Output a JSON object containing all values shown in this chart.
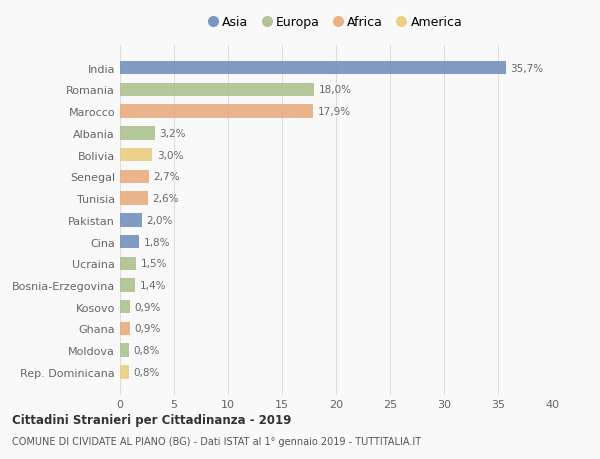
{
  "countries": [
    "India",
    "Romania",
    "Marocco",
    "Albania",
    "Bolivia",
    "Senegal",
    "Tunisia",
    "Pakistan",
    "Cina",
    "Ucraina",
    "Bosnia-Erzegovina",
    "Kosovo",
    "Ghana",
    "Moldova",
    "Rep. Dominicana"
  ],
  "values": [
    35.7,
    18.0,
    17.9,
    3.2,
    3.0,
    2.7,
    2.6,
    2.0,
    1.8,
    1.5,
    1.4,
    0.9,
    0.9,
    0.8,
    0.8
  ],
  "labels": [
    "35,7%",
    "18,0%",
    "17,9%",
    "3,2%",
    "3,0%",
    "2,7%",
    "2,6%",
    "2,0%",
    "1,8%",
    "1,5%",
    "1,4%",
    "0,9%",
    "0,9%",
    "0,8%",
    "0,8%"
  ],
  "continents": [
    "Asia",
    "Europa",
    "Africa",
    "Europa",
    "America",
    "Africa",
    "Africa",
    "Asia",
    "Asia",
    "Europa",
    "Europa",
    "Europa",
    "Africa",
    "Europa",
    "America"
  ],
  "continent_colors": {
    "Asia": "#6b8cba",
    "Europa": "#a8bf8a",
    "Africa": "#e8a97a",
    "America": "#e8cc7a"
  },
  "legend_order": [
    "Asia",
    "Europa",
    "Africa",
    "America"
  ],
  "title_bold": "Cittadini Stranieri per Cittadinanza - 2019",
  "subtitle": "COMUNE DI CIVIDATE AL PIANO (BG) - Dati ISTAT al 1° gennaio 2019 - TUTTITALIA.IT",
  "xlim": [
    0,
    40
  ],
  "xticks": [
    0,
    5,
    10,
    15,
    20,
    25,
    30,
    35,
    40
  ],
  "bg_color": "#f9f9f9",
  "grid_color": "#dddddd",
  "text_color": "#666666",
  "bar_height": 0.62
}
